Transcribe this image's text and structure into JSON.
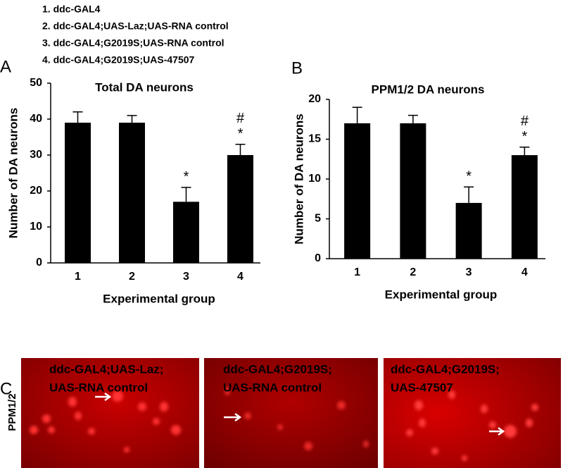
{
  "legend": [
    "1. ddc-GAL4",
    "2. ddc-GAL4;UAS-Laz;UAS-RNA control",
    "3. ddc-GAL4;G2019S;UAS-RNA control",
    "4. ddc-GAL4;G2019S;UAS-47507"
  ],
  "chart_data": [
    {
      "type": "bar",
      "panel": "A",
      "title": "Total DA neurons",
      "xlabel": "Experimental group",
      "ylabel": "Number of DA neurons",
      "categories": [
        "1",
        "2",
        "3",
        "4"
      ],
      "values": [
        39,
        39,
        17,
        30
      ],
      "errors": [
        3,
        2,
        4,
        3
      ],
      "annotations": [
        null,
        null,
        [
          "*"
        ],
        [
          "#",
          "*"
        ]
      ],
      "color": "#000000",
      "ylim": [
        0,
        50
      ],
      "yticks": [
        0,
        10,
        20,
        30,
        40,
        50
      ]
    },
    {
      "type": "bar",
      "panel": "B",
      "title": "PPM1/2 DA  neurons",
      "xlabel": "Experimental group",
      "ylabel": "Number of DA neurons",
      "categories": [
        "1",
        "2",
        "3",
        "4"
      ],
      "values": [
        17,
        17,
        7,
        13
      ],
      "errors": [
        2,
        1,
        2,
        1
      ],
      "annotations": [
        null,
        null,
        [
          "*"
        ],
        [
          "#",
          "*"
        ]
      ],
      "color": "#000000",
      "ylim": [
        0,
        20
      ],
      "yticks": [
        0,
        5,
        10,
        15,
        20
      ]
    }
  ],
  "images": {
    "panel": "C",
    "row_label": "PPM1/2",
    "captions": [
      [
        "ddc-GAL4;UAS-Laz;",
        "UAS-RNA control"
      ],
      [
        "ddc-GAL4;G2019S;",
        "UAS-RNA control"
      ],
      [
        "ddc-GAL4;G2019S;",
        "UAS-47507"
      ]
    ]
  }
}
